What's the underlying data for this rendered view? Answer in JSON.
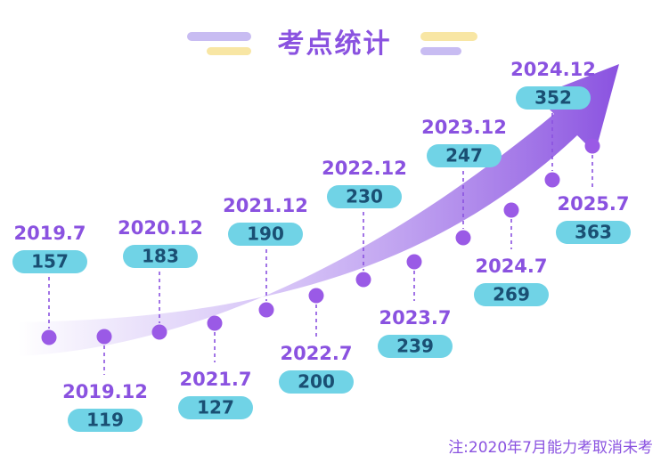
{
  "title": "考点统计",
  "note": "注:2020年7月能力考取消未考",
  "colors": {
    "accent": "#8a52e0",
    "dot": "#9a5ae6",
    "badge": "#70d3e6",
    "badge_text": "#1a4f73",
    "deco_purple": "#c8bcf2",
    "deco_yellow": "#f8e6a4"
  },
  "chart_data": {
    "type": "line",
    "title": "考点统计",
    "x_labels": [
      "2019.7",
      "2019.12",
      "2020.12",
      "2021.7",
      "2021.12",
      "2022.7",
      "2022.12",
      "2023.7",
      "2023.12",
      "2024.7",
      "2024.12",
      "2025.7"
    ],
    "series": [
      {
        "values": [
          157,
          119,
          183,
          127,
          190,
          200,
          230,
          239,
          247,
          269,
          352,
          363
        ]
      }
    ],
    "label_positions": [
      "above",
      "below",
      "above",
      "below",
      "above",
      "below",
      "above",
      "below",
      "above",
      "below",
      "above",
      "below"
    ],
    "grid": false,
    "legend": "none"
  }
}
